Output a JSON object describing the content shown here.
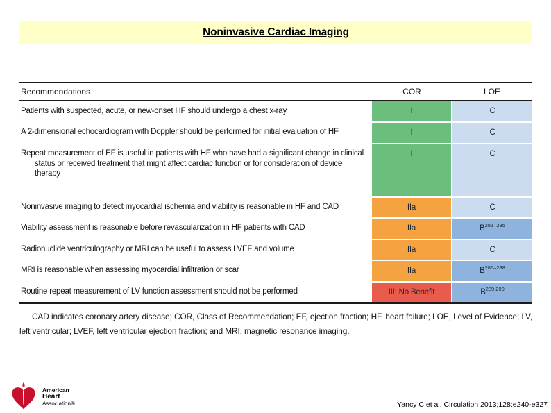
{
  "slide": {
    "title": "Noninvasive Cardiac Imaging",
    "citation": "Yancy C et al. Circulation 2013;128:e240-e327"
  },
  "logo": {
    "line1": "American",
    "line2": "Heart",
    "line3": "Association®"
  },
  "table": {
    "headers": {
      "recommendations": "Recommendations",
      "cor": "COR",
      "loe": "LOE"
    },
    "rows": [
      {
        "recommendation": "Patients with suspected, acute, or new-onset HF should undergo a chest x-ray",
        "cor": "I",
        "cor_class": "green",
        "loe": "C",
        "loe_refs": "",
        "loe_class": "light"
      },
      {
        "recommendation": "A 2-dimensional echocardiogram with Doppler should be performed for initial evaluation of HF",
        "cor": "I",
        "cor_class": "green",
        "loe": "C",
        "loe_refs": "",
        "loe_class": "light"
      },
      {
        "recommendation": "Repeat measurement of EF is useful in patients with HF who have had a significant change in clinical status or received treatment that might affect cardiac function or for consideration of device therapy",
        "cor": "I",
        "cor_class": "green",
        "loe": "C",
        "loe_refs": "",
        "loe_class": "light"
      },
      {
        "recommendation": "Noninvasive imaging to detect myocardial ischemia and viability is reasonable in HF and CAD",
        "cor": "IIa",
        "cor_class": "orange",
        "loe": "C",
        "loe_refs": "",
        "loe_class": "light"
      },
      {
        "recommendation": "Viability assessment is reasonable before revascularization in HF patients with CAD",
        "cor": "IIa",
        "cor_class": "orange",
        "loe": "B",
        "loe_refs": "281–285",
        "loe_class": "medium"
      },
      {
        "recommendation": "Radionuclide ventriculography or MRI can be useful to assess LVEF and volume",
        "cor": "IIa",
        "cor_class": "orange",
        "loe": "C",
        "loe_refs": "",
        "loe_class": "light"
      },
      {
        "recommendation": "MRI is reasonable when assessing myocardial infiltration or scar",
        "cor": "IIa",
        "cor_class": "orange",
        "loe": "B",
        "loe_refs": "286–288",
        "loe_class": "medium"
      },
      {
        "recommendation": "Routine repeat measurement of LV function assessment should not be performed",
        "cor": "III: No Benefit",
        "cor_class": "red",
        "loe": "B",
        "loe_refs": "289,290",
        "loe_class": "medium"
      }
    ],
    "footnote": "CAD indicates coronary artery disease; COR, Class of Recommendation; EF, ejection fraction; HF, heart failure; LOE, Level of Evidence; LV, left ventricular; LVEF, left ventricular ejection fraction; and MRI, magnetic resonance imaging."
  },
  "colors": {
    "class_i_green": "#6CBE7D",
    "class_iia_orange": "#F5A340",
    "class_iii_red": "#E85B4D",
    "loe_c_blue": "#CBDBF0",
    "loe_b_blue": "#8EB3DE",
    "banner_yellow": "#FFFFC8",
    "aha_red": "#C8102E"
  }
}
